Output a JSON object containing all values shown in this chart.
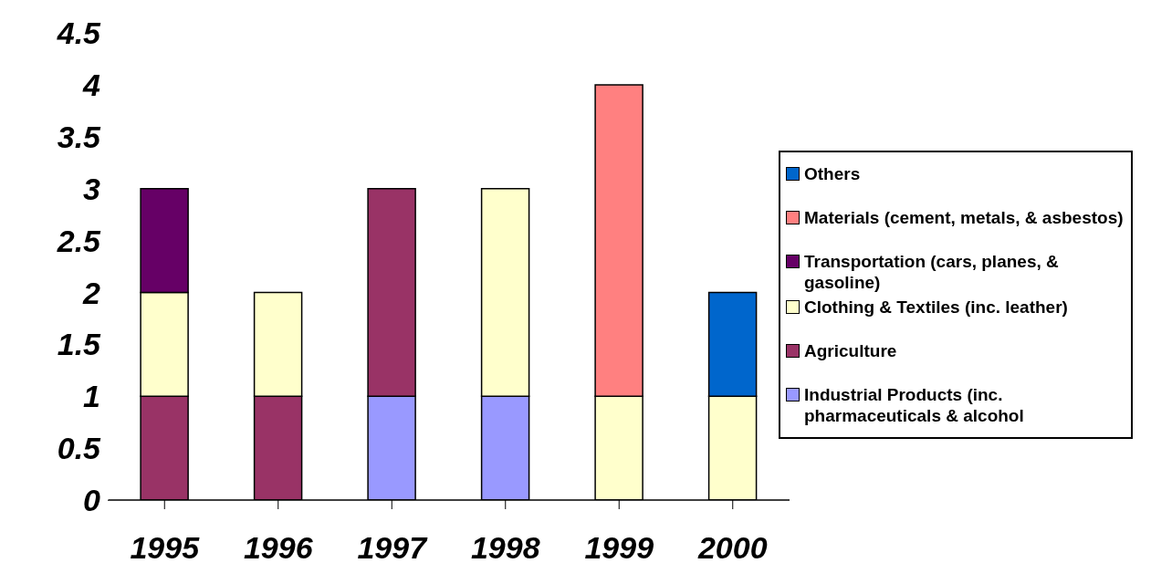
{
  "chart_data": {
    "type": "bar",
    "stacked": true,
    "categories": [
      "1995",
      "1996",
      "1997",
      "1998",
      "1999",
      "2000"
    ],
    "series": [
      {
        "name": "Industrial Products (inc. pharmaceuticals & alcohol",
        "color": "#9999ff",
        "values": [
          0,
          0,
          1,
          1,
          0,
          0
        ]
      },
      {
        "name": "Agriculture",
        "color": "#993366",
        "values": [
          1,
          1,
          2,
          0,
          0,
          0
        ]
      },
      {
        "name": "Clothing & Textiles (inc. leather)",
        "color": "#ffffcc",
        "values": [
          1,
          1,
          0,
          2,
          1,
          1
        ]
      },
      {
        "name": "Transportation (cars, planes, & gasoline)",
        "color": "#660066",
        "values": [
          1,
          0,
          0,
          0,
          0,
          0
        ]
      },
      {
        "name": "Materials (cement, metals, & asbestos)",
        "color": "#ff8080",
        "values": [
          0,
          0,
          0,
          0,
          3,
          0
        ]
      },
      {
        "name": "Others",
        "color": "#0066cc",
        "values": [
          0,
          0,
          0,
          0,
          0,
          1
        ]
      }
    ],
    "ylim": [
      0,
      4.5
    ],
    "yticks": [
      0,
      0.5,
      1,
      1.5,
      2,
      2.5,
      3,
      3.5,
      4,
      4.5
    ],
    "grid": false,
    "legend": "right"
  }
}
